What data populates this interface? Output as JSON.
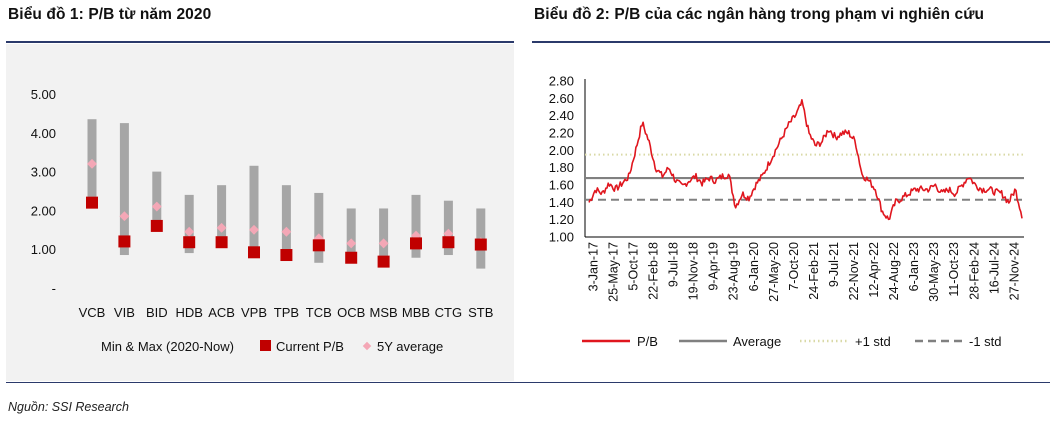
{
  "source_note": "Nguồn: SSI Research",
  "chart_data": [
    {
      "type": "range-bar",
      "title": "Biểu đồ 1: P/B từ năm 2020",
      "categories": [
        "VCB",
        "VIB",
        "BID",
        "HDB",
        "ACB",
        "VPB",
        "TPB",
        "TCB",
        "OCB",
        "MSB",
        "MBB",
        "CTG",
        "STB"
      ],
      "series": [
        {
          "name": "Min & Max (2020-Now)",
          "min": [
            2.35,
            0.85,
            1.6,
            0.9,
            1.05,
            1.0,
            0.85,
            0.65,
            0.75,
            0.65,
            0.78,
            0.85,
            0.5
          ],
          "max": [
            4.35,
            4.25,
            3.0,
            2.4,
            2.65,
            3.15,
            2.65,
            2.45,
            2.05,
            2.05,
            2.4,
            2.25,
            2.05
          ]
        },
        {
          "name": "Current P/B",
          "values": [
            2.2,
            1.2,
            1.6,
            1.18,
            1.18,
            0.92,
            0.85,
            1.1,
            0.78,
            0.68,
            1.15,
            1.18,
            1.12
          ]
        },
        {
          "name": "5Y average",
          "values": [
            3.2,
            1.85,
            2.1,
            1.45,
            1.55,
            1.5,
            1.45,
            1.28,
            1.15,
            1.15,
            1.35,
            1.4,
            1.18
          ]
        }
      ],
      "yticks": [
        "5.00",
        "4.00",
        "3.00",
        "2.00",
        "1.00",
        "-"
      ],
      "ylim": [
        0,
        5
      ],
      "colors": {
        "range": "#a6a6a6",
        "current": "#c00000",
        "average": "#f4a7b6"
      }
    },
    {
      "type": "line",
      "title": "Biểu đồ 2: P/B của các ngân hàng trong phạm vi nghiên cứu",
      "yticks": [
        "2.80",
        "2.60",
        "2.40",
        "2.20",
        "2.00",
        "1.80",
        "1.60",
        "1.40",
        "1.20",
        "1.00"
      ],
      "ylim": [
        1.0,
        2.8
      ],
      "xticks": [
        "3-Jan-17",
        "25-May-17",
        "5-Oct-17",
        "22-Feb-18",
        "9-Jul-18",
        "19-Nov-18",
        "9-Apr-19",
        "23-Aug-19",
        "6-Jan-20",
        "27-May-20",
        "7-Oct-20",
        "24-Feb-21",
        "9-Jul-21",
        "22-Nov-21",
        "12-Apr-22",
        "24-Aug-22",
        "6-Jan-23",
        "30-May-23",
        "11-Oct-23",
        "28-Feb-24",
        "16-Jul-24",
        "27-Nov-24"
      ],
      "series": [
        {
          "name": "P/B",
          "color": "#e0161e",
          "keypoints": [
            1.4,
            1.55,
            1.5,
            1.62,
            1.55,
            1.62,
            1.7,
            2.0,
            2.32,
            2.1,
            1.8,
            1.7,
            1.8,
            1.65,
            1.58,
            1.65,
            1.7,
            1.62,
            1.68,
            1.65,
            1.7,
            1.72,
            1.35,
            1.5,
            1.45,
            1.6,
            1.7,
            1.85,
            2.0,
            2.15,
            2.3,
            2.4,
            2.55,
            2.2,
            2.05,
            2.1,
            2.25,
            2.15,
            2.2,
            2.2,
            2.1,
            1.72,
            1.65,
            1.55,
            1.3,
            1.2,
            1.4,
            1.45,
            1.5,
            1.55,
            1.55,
            1.55,
            1.6,
            1.5,
            1.55,
            1.5,
            1.6,
            1.7,
            1.6,
            1.55,
            1.55,
            1.52,
            1.5,
            1.4,
            1.55,
            1.25
          ]
        },
        {
          "name": "Average",
          "value": 1.68,
          "color": "#808080"
        },
        {
          "name": "+1 std",
          "value": 1.95,
          "color": "#d9d9a6"
        },
        {
          "name": "-1 std",
          "value": 1.43,
          "color": "#808080"
        }
      ]
    }
  ]
}
